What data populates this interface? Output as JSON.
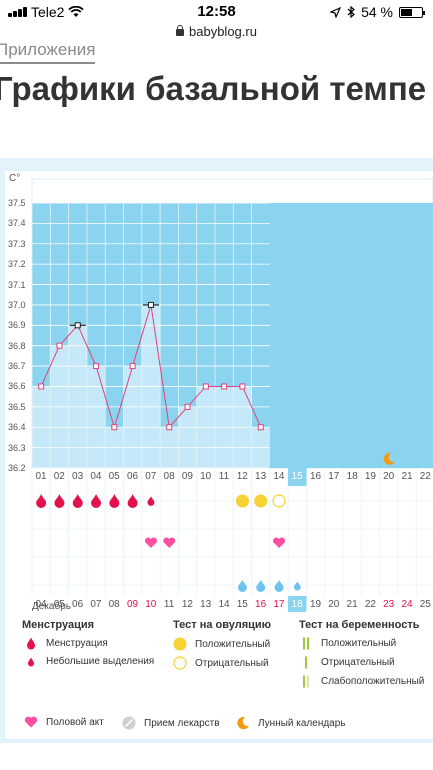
{
  "status_bar": {
    "carrier": "Tele2",
    "time": "12:58",
    "battery": "54 %",
    "battery_level": 0.54
  },
  "url": "babyblog.ru",
  "breadcrumb": "Приложения",
  "heading": "Графики базальной темпе",
  "chart_data": {
    "type": "line",
    "ylabel": "C°",
    "ylim": [
      36.2,
      37.5
    ],
    "yticks": [
      "37.5",
      "37.4",
      "37.3",
      "37.2",
      "37.1",
      "37.0",
      "36.9",
      "36.8",
      "36.7",
      "36.6",
      "36.5",
      "36.4",
      "36.3",
      "36.2"
    ],
    "cycle_days": [
      "01",
      "02",
      "03",
      "04",
      "05",
      "06",
      "07",
      "08",
      "09",
      "10",
      "11",
      "12",
      "13",
      "14",
      "15",
      "16",
      "17",
      "18",
      "19",
      "20",
      "21",
      "22"
    ],
    "temperatures": [
      36.6,
      36.8,
      36.9,
      36.7,
      36.4,
      36.7,
      37.0,
      36.4,
      36.5,
      36.6,
      36.6,
      36.6,
      36.4
    ],
    "flagged_days": [
      "03",
      "07"
    ],
    "highlight_day": "15",
    "calendar_dates": [
      "04",
      "05",
      "06",
      "07",
      "08",
      "09",
      "10",
      "11",
      "12",
      "13",
      "14",
      "15",
      "16",
      "17",
      "18",
      "19",
      "20",
      "21",
      "22",
      "23",
      "24",
      "25"
    ],
    "weekend_dates": [
      "09",
      "10",
      "16",
      "17",
      "23",
      "24"
    ],
    "highlight_date": "18",
    "month": "Декабрь",
    "menstruation": [
      "big",
      "big",
      "big",
      "big",
      "big",
      "big",
      "small"
    ],
    "ovulation_tests": {
      "positive_days": [
        "12",
        "13"
      ],
      "negative_days": [
        "14"
      ]
    },
    "intercourse_days": [
      "07",
      "08",
      "14"
    ],
    "water_days": [
      "12",
      "13",
      "14",
      "15"
    ],
    "moon_day": "20"
  },
  "legend": {
    "menstruation": {
      "title": "Менструация",
      "items": [
        "Менструация",
        "Небольшие выделения"
      ]
    },
    "ovulation": {
      "title": "Тест на овуляцию",
      "items": [
        "Положительный",
        "Отрицательный"
      ]
    },
    "pregnancy": {
      "title": "Тест на беременность",
      "items": [
        "Положительный",
        "Отрицательный",
        "Слабоположительный"
      ]
    },
    "bottom": [
      "Половой акт",
      "Прием лекарств",
      "Лунный календарь"
    ]
  },
  "colors": {
    "future_area": "#8ad4ef",
    "bar_fill": "#c5e9f8",
    "line": "#e2417a",
    "drop": "#e3124d",
    "ovulation_yellow": "#f7d233",
    "heart": "#ff4fa0",
    "water": "#6ec3ef",
    "moon": "#f19a12",
    "preg_green": "#9dc93c"
  }
}
